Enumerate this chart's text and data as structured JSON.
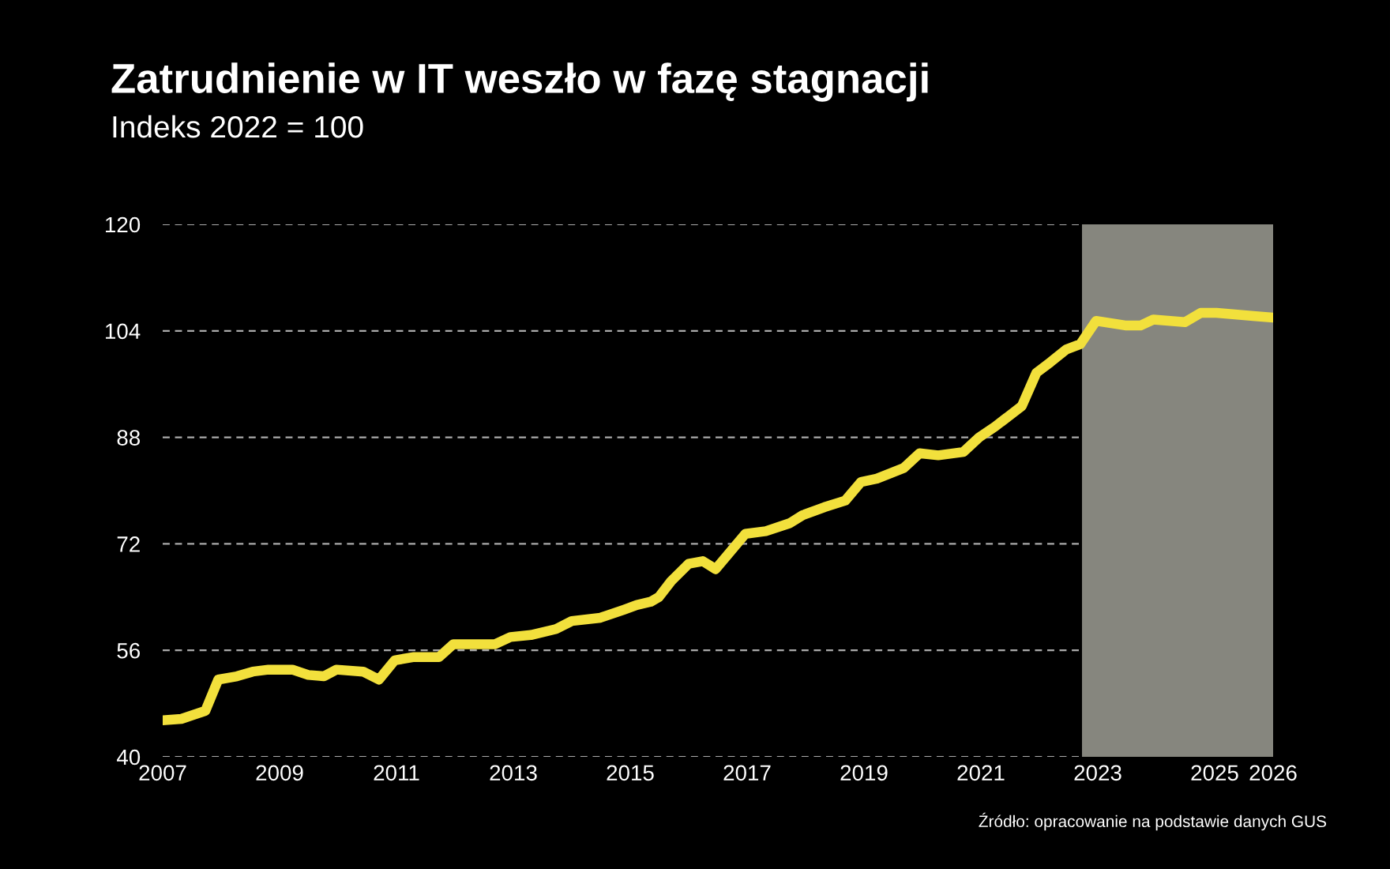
{
  "chart_data": {
    "type": "line",
    "title": "Zatrudnienie w IT weszło w fazę stagnacji",
    "subtitle": "Indeks 2022 = 100",
    "annotations": [
      "Źródło: opracowanie na podstawie danych GUS"
    ],
    "x": [
      2007.0,
      2007.32,
      2007.73,
      2007.95,
      2008.27,
      2008.54,
      2008.81,
      2009.22,
      2009.49,
      2009.76,
      2009.97,
      2010.43,
      2010.7,
      2010.97,
      2011.3,
      2011.73,
      2011.97,
      2012.68,
      2012.95,
      2013.3,
      2013.73,
      2014.0,
      2014.49,
      2014.89,
      2015.11,
      2015.35,
      2015.49,
      2015.7,
      2016.0,
      2016.24,
      2016.46,
      2016.97,
      2017.32,
      2017.73,
      2017.95,
      2018.32,
      2018.68,
      2018.95,
      2019.22,
      2019.68,
      2019.95,
      2020.27,
      2020.7,
      2020.97,
      2021.24,
      2021.7,
      2021.95,
      2022.19,
      2022.46,
      2022.7,
      2022.97,
      2023.49,
      2023.73,
      2023.95,
      2024.49,
      2024.76,
      2025.03,
      2025.7,
      2026.0
    ],
    "series": [
      {
        "color": "#f2e03c",
        "values": [
          45.5,
          45.7,
          46.9,
          51.6,
          52.1,
          52.8,
          53.1,
          53.1,
          52.3,
          52.1,
          53.1,
          52.8,
          51.6,
          54.5,
          55.0,
          55.0,
          56.9,
          56.9,
          58.0,
          58.3,
          59.2,
          60.4,
          60.9,
          62.1,
          62.8,
          63.3,
          64.0,
          66.4,
          69.0,
          69.4,
          68.2,
          73.5,
          73.9,
          75.1,
          76.3,
          77.5,
          78.5,
          81.3,
          81.8,
          83.4,
          85.6,
          85.3,
          85.8,
          88.0,
          89.6,
          92.7,
          97.7,
          99.3,
          101.2,
          102.0,
          105.5,
          104.8,
          104.8,
          105.7,
          105.3,
          106.7,
          106.7,
          106.2,
          106.0
        ]
      }
    ],
    "bands": [
      {
        "axis": "x",
        "from": 2022.73,
        "to": 2026.0,
        "color": "#86867e"
      }
    ],
    "xlim": [
      2007,
      2026
    ],
    "xticks": [
      2007,
      2009,
      2011,
      2013,
      2015,
      2017,
      2019,
      2021,
      2023,
      2025,
      2026
    ],
    "ylim": [
      40,
      120
    ],
    "yticks": [
      40,
      56,
      72,
      88,
      104,
      120
    ],
    "grid": "y",
    "marker": "none",
    "line_style": "solid",
    "legend": false
  }
}
